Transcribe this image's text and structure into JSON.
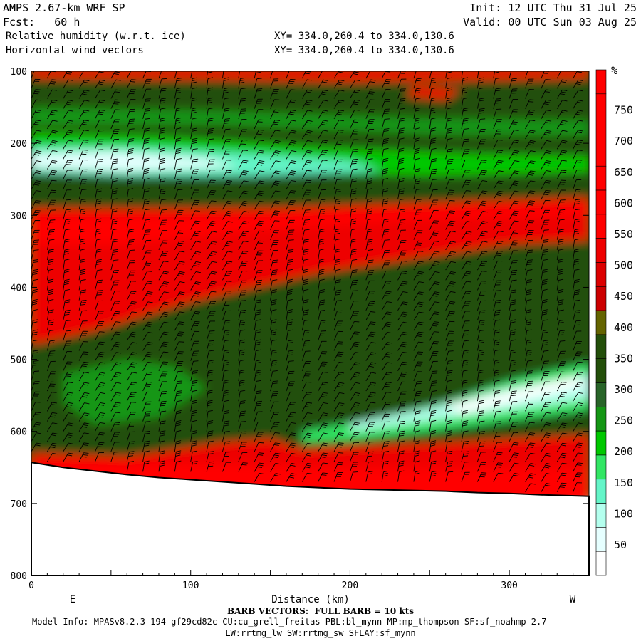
{
  "header": {
    "model": "AMPS 2.67-km WRF SP",
    "init": "Init: 12 UTC Thu 31 Jul 25",
    "fcst": "Fcst:   60 h",
    "valid": "Valid: 00 UTC Sun 03 Aug 25",
    "field1": "Relative humidity (w.r.t. ice)",
    "xy1": "XY= 334.0,260.4 to 334.0,130.6",
    "field2": "Horizontal wind vectors",
    "xy2": "XY= 334.0,260.4 to 334.0,130.6"
  },
  "footer": {
    "barb": "BARB VECTORS:  FULL BARB = 10 kts",
    "model_info": "Model Info: MPASv8.2.3-194-gf29cd82c CU:cu_grell_freitas PBL:bl_mynn MP:mp_thompson SF:sf_noahmp 2.7",
    "model_info2": "LW:rrtmg_lw SW:rrtmg_sw SFLAY:sf_mynn"
  },
  "chart_data": {
    "type": "heatmap",
    "title": "Relative humidity (w.r.t. ice)",
    "xlabel": "Distance (km)",
    "ylabel": "",
    "x_range": [
      0,
      350
    ],
    "y_range": [
      100,
      800
    ],
    "y_inverted": true,
    "x_ticks": [
      0,
      100,
      200,
      300
    ],
    "y_ticks": [
      100,
      200,
      300,
      400,
      500,
      600,
      700,
      800
    ],
    "x_end_labels": {
      "left": "E",
      "right": "W"
    },
    "colorbar": {
      "unit": "%",
      "labels": [
        50,
        100,
        150,
        200,
        250,
        300,
        350,
        400,
        450,
        500,
        550,
        600,
        650,
        700,
        750
      ],
      "colors": [
        "#ffffff",
        "#e6ffff",
        "#b4ffee",
        "#64f5c8",
        "#32e664",
        "#00c800",
        "#149614",
        "#286428",
        "#234f0a",
        "#234f0a",
        "#646400",
        "#cc0000",
        "#dc0000",
        "#ee0000",
        "#ff0000",
        "#ff0000",
        "#ff0000",
        "#ff0000",
        "#ff0000",
        "#ff0000",
        "#ff0000"
      ]
    },
    "terrain_pressure": [
      [
        0,
        643
      ],
      [
        20,
        650
      ],
      [
        40,
        655
      ],
      [
        60,
        660
      ],
      [
        80,
        664
      ],
      [
        100,
        667
      ],
      [
        120,
        670
      ],
      [
        140,
        673
      ],
      [
        160,
        676
      ],
      [
        180,
        678
      ],
      [
        200,
        680
      ],
      [
        220,
        681
      ],
      [
        240,
        682
      ],
      [
        260,
        683
      ],
      [
        280,
        685
      ],
      [
        300,
        686
      ],
      [
        320,
        688
      ],
      [
        350,
        690
      ]
    ],
    "barb_columns_x": [
      0,
      10,
      20,
      30,
      40,
      50,
      60,
      70,
      80,
      90,
      100,
      110,
      120,
      130,
      140,
      150,
      160,
      170,
      180,
      190,
      200,
      210,
      220,
      230,
      240,
      250,
      260,
      270,
      280,
      290,
      300,
      310,
      320,
      330,
      340,
      350
    ]
  }
}
